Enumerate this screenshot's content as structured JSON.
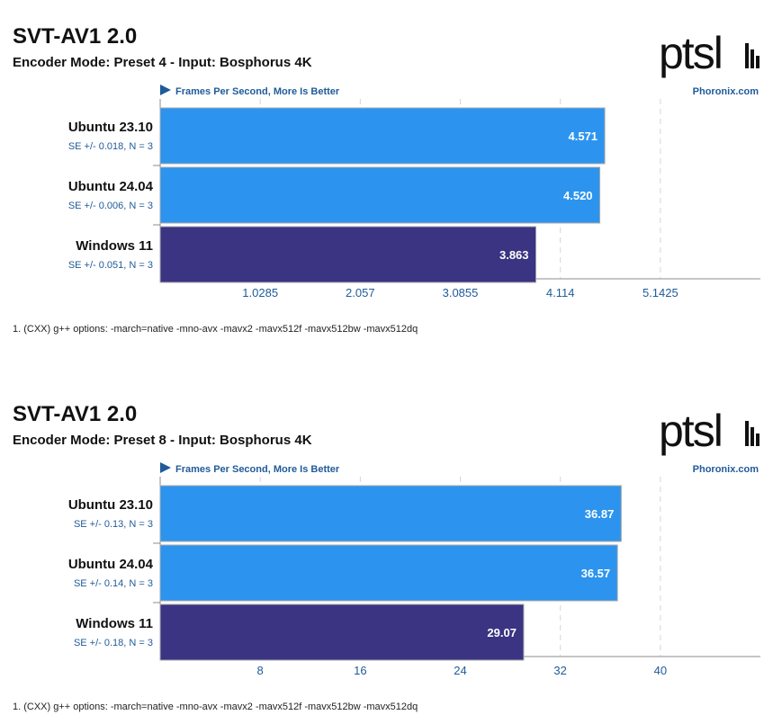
{
  "brand": {
    "logo_text": "ptsl",
    "site": "Phoronix.com"
  },
  "colors": {
    "ubuntu_bar": "#2c94ee",
    "windows_bar": "#3a3482",
    "bar_border": "#a9a9a9",
    "se_text": "#1f5b99",
    "tick_text": "#1f5b99",
    "subtitle_blue": "#1f5b99",
    "grid": "#d5d5d5",
    "axis": "#8c8c8c"
  },
  "chart_data": [
    {
      "type": "bar",
      "orientation": "horizontal",
      "title": "SVT-AV1 2.0",
      "subtitle": "Encoder Mode: Preset 4 - Input: Bosphorus 4K",
      "metric": "Frames Per Second, More Is Better",
      "source": "Phoronix.com",
      "categories": [
        "Ubuntu 23.10",
        "Ubuntu 24.04",
        "Windows 11"
      ],
      "values": [
        4.571,
        4.52,
        3.863
      ],
      "value_labels": [
        "4.571",
        "4.520",
        "3.863"
      ],
      "se_labels": [
        "SE +/- 0.018, N = 3",
        "SE +/- 0.006, N = 3",
        "SE +/- 0.051, N = 3"
      ],
      "bar_colors": [
        "#2c94ee",
        "#2c94ee",
        "#3a3482"
      ],
      "xticks": [
        1.0285,
        2.057,
        3.0855,
        4.114,
        5.1425
      ],
      "xtick_labels": [
        "1.0285",
        "2.057",
        "3.0855",
        "4.114",
        "5.1425"
      ],
      "xlim": [
        0,
        6.171
      ],
      "grid": true,
      "footnote": "1. (CXX) g++ options: -march=native -mno-avx -mavx2 -mavx512f -mavx512bw -mavx512dq"
    },
    {
      "type": "bar",
      "orientation": "horizontal",
      "title": "SVT-AV1 2.0",
      "subtitle": "Encoder Mode: Preset 8 - Input: Bosphorus 4K",
      "metric": "Frames Per Second, More Is Better",
      "source": "Phoronix.com",
      "categories": [
        "Ubuntu 23.10",
        "Ubuntu 24.04",
        "Windows 11"
      ],
      "values": [
        36.87,
        36.57,
        29.07
      ],
      "value_labels": [
        "36.87",
        "36.57",
        "29.07"
      ],
      "se_labels": [
        "SE +/- 0.13, N = 3",
        "SE +/- 0.14, N = 3",
        "SE +/- 0.18, N = 3"
      ],
      "bar_colors": [
        "#2c94ee",
        "#2c94ee",
        "#3a3482"
      ],
      "xticks": [
        8,
        16,
        24,
        32,
        40
      ],
      "xtick_labels": [
        "8",
        "16",
        "24",
        "32",
        "40"
      ],
      "xlim": [
        0,
        48
      ],
      "grid": true,
      "footnote": "1. (CXX) g++ options: -march=native -mno-avx -mavx2 -mavx512f -mavx512bw -mavx512dq"
    }
  ]
}
